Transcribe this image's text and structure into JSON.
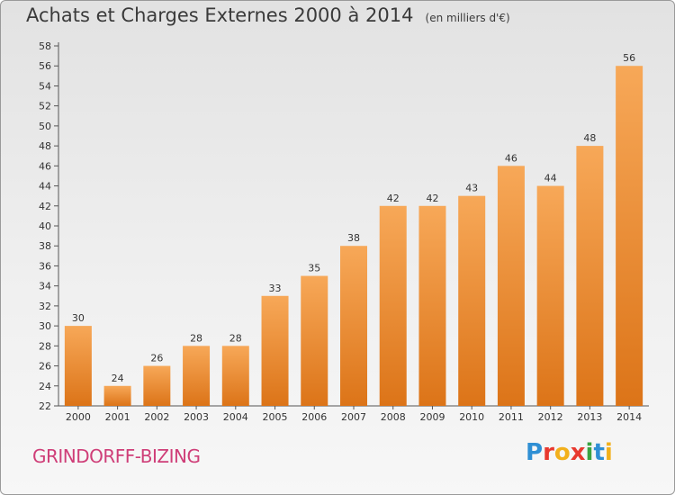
{
  "title": "Achats et Charges Externes 2000 à 2014",
  "unit_note": "(en milliers d'€)",
  "commune": "GRINDORFF-BIZING",
  "logo": {
    "letters": [
      "P",
      "r",
      "o",
      "x",
      "i",
      "t",
      "i"
    ]
  },
  "colors": {
    "bar_light": "#f7a858",
    "bar_dark": "#dc7418",
    "commune_text": "#cf3e78"
  },
  "chart_data": {
    "type": "bar",
    "categories": [
      "2000",
      "2001",
      "2002",
      "2003",
      "2004",
      "2005",
      "2006",
      "2007",
      "2008",
      "2009",
      "2010",
      "2011",
      "2012",
      "2013",
      "2014"
    ],
    "values": [
      30,
      24,
      26,
      28,
      28,
      33,
      35,
      38,
      42,
      42,
      43,
      46,
      44,
      48,
      56
    ],
    "ylim": [
      22,
      58
    ],
    "yticks": [
      22,
      24,
      26,
      28,
      30,
      32,
      34,
      36,
      38,
      40,
      42,
      44,
      46,
      48,
      50,
      52,
      54,
      56,
      58
    ],
    "grid": false,
    "data_labels": true
  }
}
